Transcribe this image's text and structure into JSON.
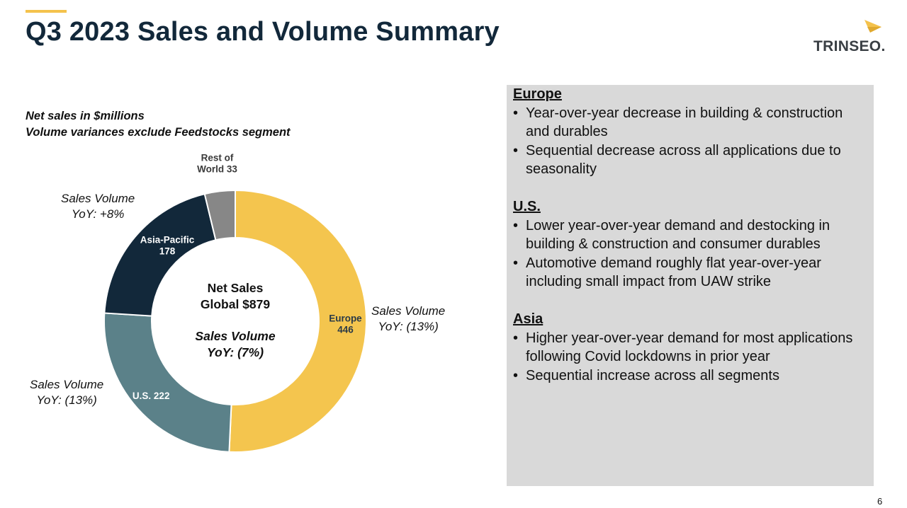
{
  "header": {
    "title": "Q3 2023 Sales and Volume Summary",
    "logo_text": "TRINSEO.",
    "accent_color": "#f4c24c"
  },
  "subtitle": {
    "line1": "Net sales in $millions",
    "line2": "Volume variances exclude Feedstocks segment"
  },
  "chart_data": {
    "type": "pie",
    "variant": "donut",
    "unit": "$millions",
    "center": {
      "line1": "Net Sales",
      "line2": "Global $879",
      "line3": "Sales Volume",
      "line4": "YoY: (7%)"
    },
    "slices": [
      {
        "label": "Europe",
        "value": 446,
        "color": "#f4c54e",
        "text_color": "#2a3a47",
        "label_line1": "Europe",
        "label_line2": "446"
      },
      {
        "label": "U.S.",
        "value": 222,
        "color": "#5b8189",
        "text_color": "#ffffff",
        "label_line1": "U.S. 222",
        "label_line2": ""
      },
      {
        "label": "Asia-Pacific",
        "value": 178,
        "color": "#12283a",
        "text_color": "#ffffff",
        "label_line1": "Asia-Pacific",
        "label_line2": "178"
      },
      {
        "label": "Rest of World",
        "value": 33,
        "color": "#878787",
        "text_color": "#3a3a3a",
        "label_line1": "Rest of",
        "label_line2": "World 33"
      }
    ],
    "external_labels": [
      {
        "region": "Europe",
        "line1": "Sales Volume",
        "line2": "YoY: (13%)"
      },
      {
        "region": "U.S.",
        "line1": "Sales Volume",
        "line2": "YoY: (13%)"
      },
      {
        "region": "Asia-Pacific",
        "line1": "Sales Volume",
        "line2": "YoY: +8%"
      }
    ]
  },
  "panel": {
    "background": "#d9d9d9",
    "regions": [
      {
        "heading": "Europe",
        "bullets": [
          "Year-over-year decrease in building & construction and durables",
          "Sequential decrease across all applications due to seasonality"
        ]
      },
      {
        "heading": "U.S.",
        "bullets": [
          "Lower year-over-year demand and destocking in building & construction and consumer durables",
          "Automotive demand roughly flat year-over-year including small impact from UAW strike"
        ]
      },
      {
        "heading": "Asia",
        "bullets": [
          "Higher year-over-year demand for most applications following Covid lockdowns in prior year",
          "Sequential increase across all segments"
        ]
      }
    ]
  },
  "page_number": "6"
}
